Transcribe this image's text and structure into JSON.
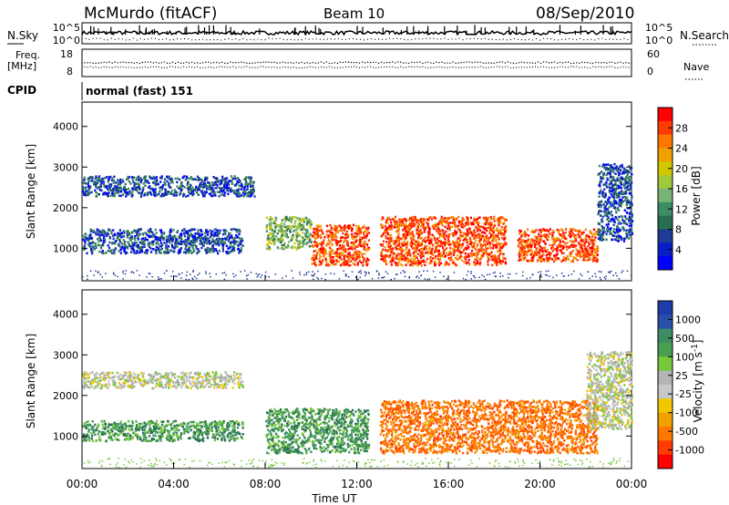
{
  "header": {
    "station": "McMurdo (fitACF)",
    "beam": "Beam 10",
    "date": "08/Sep/2010",
    "cpid_label": "CPID",
    "cpid_value": "normal (fast) 151"
  },
  "strip_panels": {
    "noise": {
      "left_label": "N.Sky",
      "right_label": "N.Search",
      "left_ticks": [
        "10^5",
        "10^0"
      ],
      "right_ticks": [
        "10^5",
        "10^0"
      ]
    },
    "freq": {
      "left_label_1": "Freq.",
      "left_label_2": "[MHz]",
      "right_label": "Nave",
      "left_ticks": [
        "18",
        "8"
      ],
      "right_ticks": [
        "60",
        "0"
      ]
    }
  },
  "chart_data": [
    {
      "type": "heatmap",
      "name": "power",
      "ylabel": "Slant Range [km]",
      "ylim": [
        200,
        4600
      ],
      "yticks": [
        1000,
        2000,
        3000,
        4000
      ],
      "xlim": [
        0,
        24
      ],
      "colorbar_label": "Power [dB]",
      "colorbar_ticks": [
        "28",
        "24",
        "20",
        "16",
        "12",
        "8",
        "4"
      ],
      "colorbar_colors": [
        "#ff0000",
        "#ff3c00",
        "#ff7800",
        "#f0a000",
        "#d2c800",
        "#a0c83c",
        "#78b478",
        "#3c8c64",
        "#286e50",
        "#1e3c96",
        "#0a1ec8",
        "#0000ff"
      ],
      "echo_regions": [
        {
          "t_start": 0.0,
          "t_end": 7.5,
          "range_min": 2300,
          "range_max": 2800,
          "level": "low"
        },
        {
          "t_start": 0.0,
          "t_end": 7.0,
          "range_min": 900,
          "range_max": 1500,
          "level": "low"
        },
        {
          "t_start": 8.0,
          "t_end": 10.0,
          "range_min": 1000,
          "range_max": 1800,
          "level": "mid"
        },
        {
          "t_start": 10.0,
          "t_end": 12.5,
          "range_min": 600,
          "range_max": 1600,
          "level": "high"
        },
        {
          "t_start": 13.0,
          "t_end": 18.5,
          "range_min": 600,
          "range_max": 1800,
          "level": "high"
        },
        {
          "t_start": 19.0,
          "t_end": 22.5,
          "range_min": 700,
          "range_max": 1500,
          "level": "high"
        },
        {
          "t_start": 22.5,
          "t_end": 24.0,
          "range_min": 1200,
          "range_max": 3100,
          "level": "low"
        }
      ]
    },
    {
      "type": "heatmap",
      "name": "velocity",
      "ylabel": "Slant Range [km]",
      "ylim": [
        200,
        4600
      ],
      "yticks": [
        1000,
        2000,
        3000,
        4000
      ],
      "xlabel": "Time UT",
      "xlim": [
        0,
        24
      ],
      "xticks": [
        "00:00",
        "04:00",
        "08:00",
        "12:00",
        "16:00",
        "20:00",
        "00:00"
      ],
      "colorbar_label": "Velocity [m s",
      "colorbar_label_sup": "-1",
      "colorbar_label_end": "]",
      "colorbar_ticks": [
        "1000",
        "500",
        "100",
        "25",
        "-25",
        "-100",
        "-500",
        "-1000"
      ],
      "colorbar_colors": [
        "#1e3caa",
        "#2850aa",
        "#3c8c64",
        "#46a050",
        "#78c83c",
        "#b4b4b4",
        "#c8c8c8",
        "#f0c800",
        "#f0a000",
        "#ff7800",
        "#ff3c00",
        "#ff0000"
      ],
      "echo_regions": [
        {
          "t_start": 0.0,
          "t_end": 7.0,
          "range_min": 2200,
          "range_max": 2600,
          "level": "neutral"
        },
        {
          "t_start": 0.0,
          "t_end": 7.0,
          "range_min": 900,
          "range_max": 1400,
          "level": "toward"
        },
        {
          "t_start": 8.0,
          "t_end": 12.5,
          "range_min": 600,
          "range_max": 1700,
          "level": "toward"
        },
        {
          "t_start": 13.0,
          "t_end": 22.5,
          "range_min": 600,
          "range_max": 1900,
          "level": "away"
        },
        {
          "t_start": 22.0,
          "t_end": 24.0,
          "range_min": 1200,
          "range_max": 3100,
          "level": "neutral"
        }
      ]
    }
  ]
}
